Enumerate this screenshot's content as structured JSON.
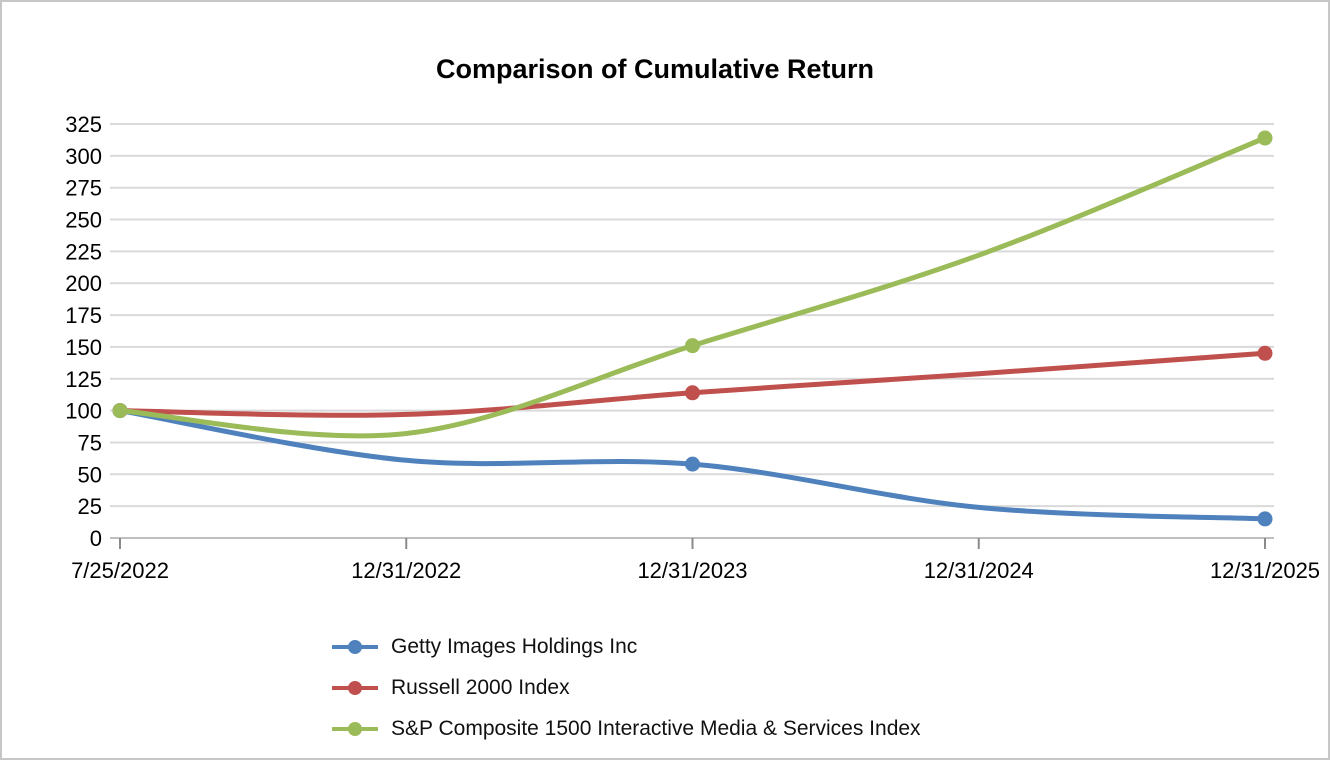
{
  "title": "Comparison of Cumulative Return",
  "chart_data": {
    "type": "line",
    "title": "Comparison of Cumulative Return",
    "categories": [
      "7/25/2022",
      "12/31/2022",
      "12/31/2023",
      "12/31/2024",
      "12/31/2025"
    ],
    "series": [
      {
        "name": "Getty Images Holdings Inc",
        "color": "#4F81BD",
        "values": [
          100,
          61,
          58,
          24,
          15
        ]
      },
      {
        "name": "Russell 2000 Index",
        "color": "#C0504D",
        "values": [
          100,
          97,
          114,
          129,
          145
        ]
      },
      {
        "name": "S&P Composite 1500 Interactive Media & Services Index",
        "color": "#9BBB59",
        "values": [
          100,
          82,
          151,
          222,
          314
        ]
      }
    ],
    "marker_point_indices": [
      0,
      2,
      4
    ],
    "ylim": [
      0,
      325
    ],
    "ytick_step": 25,
    "ytick_labels": [
      "0",
      "25",
      "50",
      "75",
      "100",
      "125",
      "150",
      "175",
      "200",
      "225",
      "250",
      "275",
      "300",
      "325"
    ],
    "grid": "horizontal-only",
    "legend_position": "bottom-left",
    "line_style": "smoothed-with-markers",
    "colors": {
      "gridline": "#d9d9d9",
      "axis_line": "#bfbfbf",
      "tick_mark": "#8a8a8a",
      "axis_label": "#000000",
      "background": "#ffffff",
      "frame_border": "#c6c6c6"
    }
  }
}
